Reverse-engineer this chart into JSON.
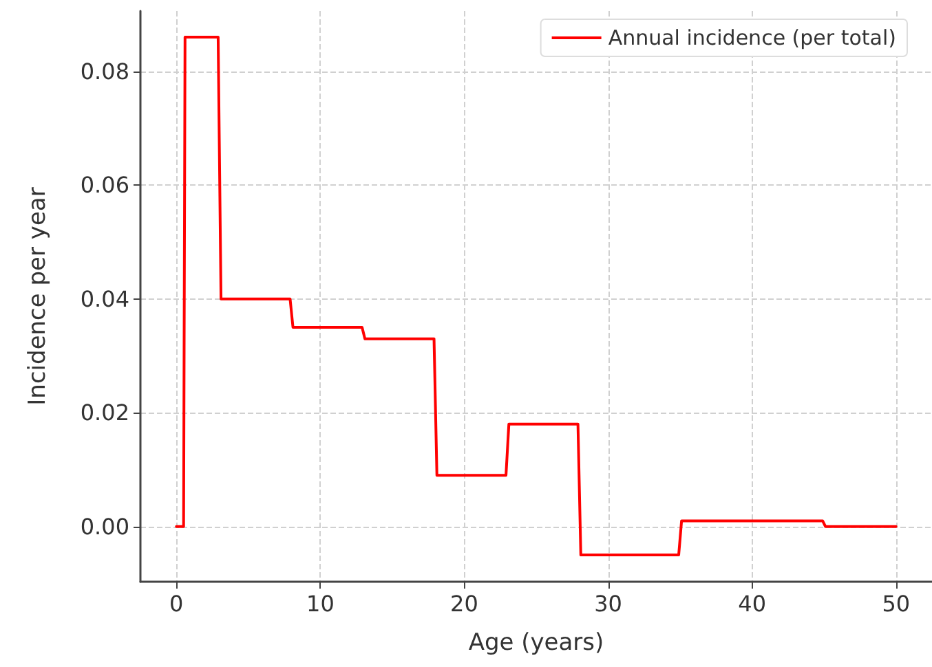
{
  "chart_data": {
    "type": "line",
    "xlabel": "Age (years)",
    "ylabel": "Incidence per year",
    "series": [
      {
        "name": "Annual incidence (per total)",
        "color": "#ff0000",
        "x": [
          0,
          0.5,
          0.6,
          2.9,
          3.1,
          7.9,
          8.1,
          12.9,
          13.1,
          17.9,
          18.1,
          22.9,
          23.1,
          27.9,
          28.1,
          34.9,
          35.1,
          44.9,
          45.1,
          50
        ],
        "values": [
          0,
          0,
          0.086,
          0.086,
          0.04,
          0.04,
          0.035,
          0.035,
          0.033,
          0.033,
          0.009,
          0.009,
          0.018,
          0.018,
          -0.005,
          -0.005,
          0.001,
          0.001,
          0,
          0
        ]
      }
    ],
    "xlim": [
      -2.5,
      52.5
    ],
    "xticks": [
      0,
      10,
      20,
      30,
      40,
      50
    ],
    "ylim": [
      -0.0097,
      0.0906
    ],
    "yticks": [
      {
        "value": 0,
        "label": "0.00"
      },
      {
        "value": 0.02,
        "label": "0.02"
      },
      {
        "value": 0.04,
        "label": "0.04"
      },
      {
        "value": 0.06,
        "label": "0.06"
      },
      {
        "value": 0.08,
        "label": "0.08"
      }
    ],
    "grid": true,
    "legend": "top right",
    "marker": "none",
    "line_style": "solid"
  }
}
